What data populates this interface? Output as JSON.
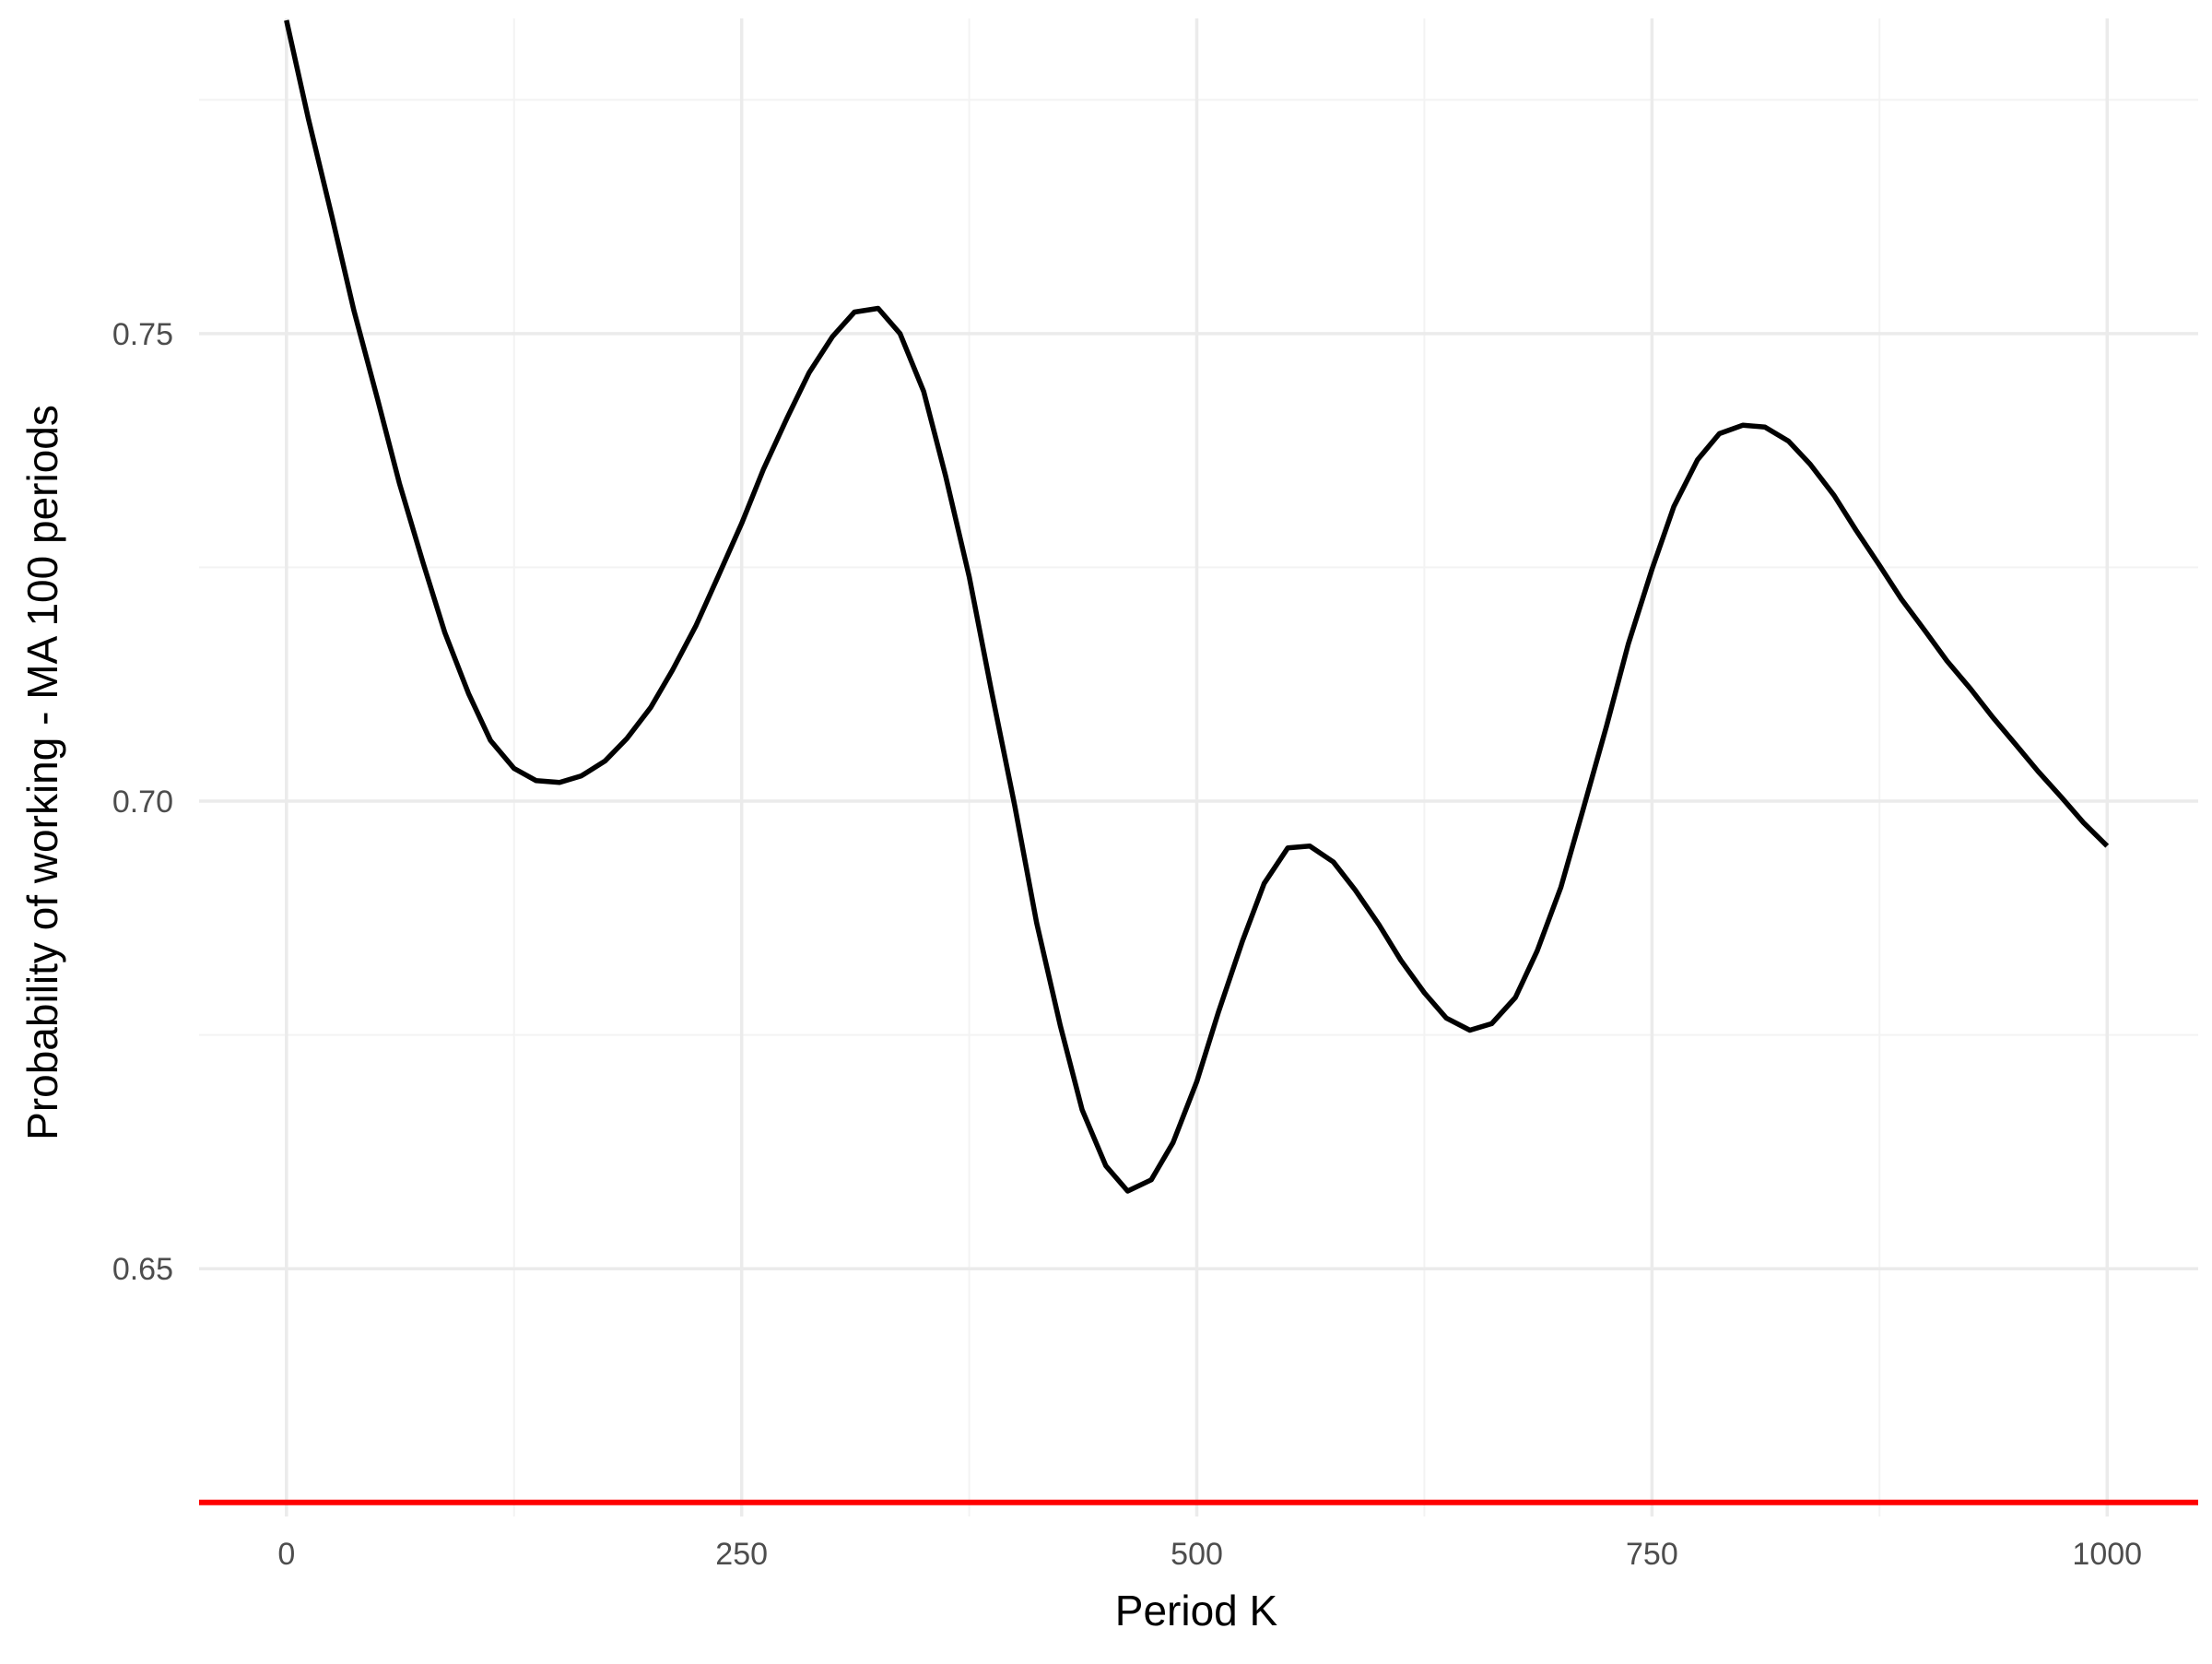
{
  "chart_data": {
    "type": "line",
    "title": "",
    "xlabel": "Period K",
    "ylabel": "Probability of working - MA 100 periods",
    "xlim": [
      -48,
      1050
    ],
    "ylim": [
      0.6235,
      0.7837
    ],
    "x_ticks": [
      0,
      250,
      500,
      750,
      1000
    ],
    "x_tick_labels": [
      "0",
      "250",
      "500",
      "750",
      "1000"
    ],
    "x_minor_ticks": [
      125,
      375,
      625,
      875
    ],
    "y_ticks": [
      0.65,
      0.7,
      0.75
    ],
    "y_tick_labels": [
      "0.65",
      "0.70",
      "0.75"
    ],
    "y_minor_ticks": [
      0.675,
      0.725,
      0.775
    ],
    "grid": true,
    "colors": {
      "line": "#000000",
      "hline": "#ff0000",
      "grid_major": "#ebebeb",
      "grid_minor": "#f3f3f3",
      "background": "#ffffff"
    },
    "series": [
      {
        "x": [
          0,
          12,
          25,
          37,
          50,
          62,
          75,
          87,
          100,
          112,
          125,
          137,
          150,
          162,
          175,
          187,
          200,
          212,
          225,
          237,
          250,
          262,
          275,
          287,
          300,
          312,
          325,
          337,
          350,
          362,
          375,
          387,
          400,
          412,
          425,
          437,
          450,
          462,
          475,
          487,
          500,
          512,
          525,
          537,
          550,
          562,
          575,
          587,
          600,
          612,
          625,
          637,
          650,
          662,
          675,
          687,
          700,
          712,
          725,
          737,
          750,
          762,
          775,
          787,
          800,
          812,
          825,
          837,
          850,
          862,
          875,
          887,
          900,
          912,
          925,
          937,
          950,
          962,
          975,
          987,
          1000
        ],
        "y": [
          0.7835,
          0.773,
          0.7625,
          0.7525,
          0.743,
          0.734,
          0.7255,
          0.718,
          0.7115,
          0.7065,
          0.7035,
          0.7022,
          0.702,
          0.7027,
          0.7043,
          0.7067,
          0.71,
          0.714,
          0.7188,
          0.724,
          0.7297,
          0.7355,
          0.741,
          0.7458,
          0.7497,
          0.7523,
          0.7527,
          0.75,
          0.7438,
          0.7348,
          0.724,
          0.712,
          0.6995,
          0.687,
          0.676,
          0.667,
          0.661,
          0.6583,
          0.6595,
          0.6635,
          0.67,
          0.6775,
          0.685,
          0.6912,
          0.695,
          0.6952,
          0.6935,
          0.6905,
          0.6868,
          0.683,
          0.6795,
          0.6768,
          0.6755,
          0.6762,
          0.679,
          0.684,
          0.6908,
          0.699,
          0.708,
          0.7168,
          0.7248,
          0.7315,
          0.7365,
          0.7393,
          0.7402,
          0.74,
          0.7385,
          0.736,
          0.7327,
          0.729,
          0.7252,
          0.7216,
          0.7182,
          0.715,
          0.712,
          0.709,
          0.706,
          0.7032,
          0.7004,
          0.6977,
          0.6952
        ]
      }
    ],
    "hline": {
      "y": 0.625
    }
  }
}
